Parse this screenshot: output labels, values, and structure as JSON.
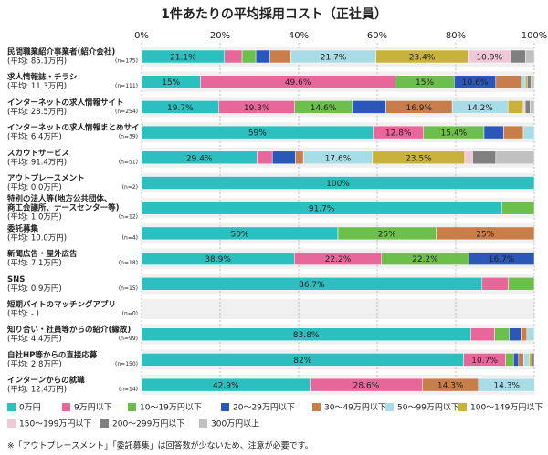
{
  "chart_data": {
    "type": "stacked-bar-horizontal",
    "title": "1件あたりの平均採用コスト（正社員）",
    "categories": [
      "民間職業紹介事業者(紹介会社)",
      "求人情報誌・チラシ",
      "インターネットの求人情報サイト",
      "インターネットの求人情報まとめサイト",
      "スカウトサービス",
      "アウトプレースメント",
      [
        "特別の法人等(地方公共団体、",
        "商工会議所、ナースセンター等)"
      ],
      "委託募集",
      "新聞広告・屋外広告",
      "SNS",
      "短期バイトのマッチングアプリ",
      "知り合い・社員等からの紹介(縁故)",
      "自社HP等からの直接応募",
      "インターンからの就職"
    ],
    "averages": [
      "(平均: 85.1万円)",
      "(平均: 11.3万円)",
      "(平均: 28.5万円)",
      "(平均: 6.4万円)",
      "(平均: 91.4万円)",
      "(平均: 0.0万円)",
      "(平均: 1.0万円)",
      "(平均: 10.0万円)",
      "(平均: 7.1万円)",
      "(平均: 0.9万円)",
      "(平均: - )",
      "(平均: 4.4万円)",
      "(平均: 2.8万円)",
      "(平均: 12.4万円)"
    ],
    "n_labels": [
      "(n=175)",
      "(n=111)",
      "(n=254)",
      "(n=39)",
      "(n=51)",
      "(n=2)",
      "(n=12)",
      "(n=4)",
      "(n=18)",
      "(n=15)",
      "(n=0)",
      "(n=99)",
      "(n=150)",
      "(n=14)"
    ],
    "xlim": [
      0,
      100
    ],
    "xticks": [
      {
        "value": 0,
        "label": "0%"
      },
      {
        "value": 20,
        "label": "20%"
      },
      {
        "value": 40,
        "label": "40%"
      },
      {
        "value": 60,
        "label": "60%"
      },
      {
        "value": 80,
        "label": "80%"
      },
      {
        "value": 100,
        "label": "100%"
      }
    ],
    "grid": true,
    "series": [
      {
        "name": "0万円",
        "color": "#2bbfbf",
        "values": [
          21.1,
          15,
          19.7,
          59,
          29.4,
          100,
          91.7,
          50,
          38.9,
          86.7,
          0,
          83.8,
          82,
          42.9
        ],
        "value_labels": [
          "21.1%",
          "15%",
          "19.7%",
          "59%",
          "29.4%",
          "100%",
          "91.7%",
          "50%",
          "38.9%",
          "86.7%",
          null,
          "83.8%",
          "82%",
          "42.9%"
        ]
      },
      {
        "name": "9万円以下",
        "color": "#e8679a",
        "values": [
          4.5,
          49.6,
          19.3,
          12.8,
          3.9,
          0,
          0,
          0,
          22.2,
          6.7,
          0,
          6.1,
          10.7,
          28.6
        ],
        "value_labels": [
          null,
          "49.6%",
          "19.3%",
          "12.8%",
          null,
          null,
          null,
          null,
          "22.2%",
          null,
          null,
          null,
          "10.7%",
          "28.6%"
        ]
      },
      {
        "name": "10〜19万円以下",
        "color": "#6cbf4a",
        "values": [
          3.5,
          15,
          14.6,
          15.4,
          0,
          0,
          8.3,
          25,
          22.2,
          6.6,
          0,
          3.7,
          2,
          0
        ],
        "value_labels": [
          null,
          "15%",
          "14.6%",
          "15.4%",
          null,
          null,
          null,
          "25%",
          "22.2%",
          null,
          null,
          null,
          null,
          null
        ]
      },
      {
        "name": "20〜29万円以下",
        "color": "#2a57b8",
        "values": [
          3.6,
          10.6,
          8.6,
          5,
          5.9,
          0,
          0,
          0,
          16.7,
          0,
          0,
          3,
          1.3,
          0
        ],
        "value_labels": [
          null,
          "10.6%",
          null,
          null,
          null,
          null,
          null,
          null,
          "16.7%",
          null,
          null,
          null,
          null,
          null
        ]
      },
      {
        "name": "30〜49万円以下",
        "color": "#c97d4a",
        "values": [
          5.3,
          6.5,
          16.9,
          5,
          2,
          0,
          0,
          25,
          0,
          0,
          0,
          1.5,
          1.3,
          14.3
        ],
        "value_labels": [
          null,
          null,
          "16.9%",
          null,
          null,
          null,
          null,
          "25%",
          null,
          null,
          null,
          null,
          null,
          "14.3%"
        ]
      },
      {
        "name": "50〜99万円以下",
        "color": "#a8dce6",
        "values": [
          21.7,
          1,
          14.2,
          2.8,
          17.6,
          0,
          0,
          0,
          0,
          0,
          0,
          1.9,
          1.4,
          14.3
        ],
        "value_labels": [
          "21.7%",
          null,
          "14.2%",
          null,
          "17.6%",
          null,
          null,
          null,
          null,
          null,
          null,
          null,
          null,
          "14.3%"
        ]
      },
      {
        "name": "100〜149万円以下",
        "color": "#c9b23a",
        "values": [
          23.4,
          0.5,
          3.9,
          0,
          23.5,
          0,
          0,
          0,
          0,
          0,
          0,
          0,
          0.7,
          0
        ],
        "value_labels": [
          "23.4%",
          null,
          null,
          null,
          "23.5%",
          null,
          null,
          null,
          null,
          null,
          null,
          null,
          null,
          null
        ]
      },
      {
        "name": "150〜199万円以下",
        "color": "#f0c8d8",
        "values": [
          10.9,
          0,
          0.5,
          0,
          2,
          0,
          0,
          0,
          0,
          0,
          0,
          0,
          0,
          0
        ],
        "value_labels": [
          "10.9%",
          null,
          null,
          null,
          null,
          null,
          null,
          null,
          null,
          null,
          null,
          null,
          null,
          null
        ]
      },
      {
        "name": "200〜299万円以下",
        "color": "#808080",
        "values": [
          3.8,
          1,
          1.2,
          0,
          5.9,
          0,
          0,
          0,
          0,
          0,
          0,
          0,
          0.6,
          0
        ]
      },
      {
        "name": "300万円以上",
        "color": "#c0c0c0",
        "values": [
          2.2,
          0.8,
          1.1,
          0,
          9.8,
          0,
          0,
          0,
          0,
          0,
          0,
          0,
          0,
          0
        ]
      }
    ],
    "note": "※「アウトプレースメント」「委託募集」は回答数が少ないため、注意が必要です。"
  }
}
